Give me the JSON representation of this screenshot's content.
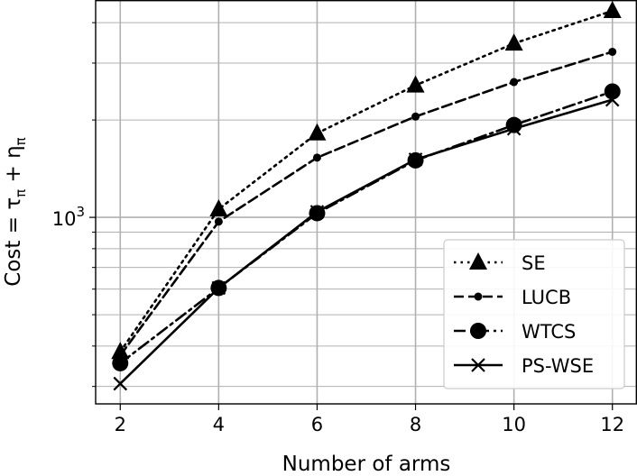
{
  "chart_data": {
    "type": "line",
    "xlabel": "Number of arms",
    "ylabel_main": "Cost = τ",
    "ylabel_sub1": "π",
    "ylabel_mid": " + η",
    "ylabel_sub2": "π",
    "yscale": "log",
    "grid": true,
    "legend_position": "lower-right",
    "x": [
      2,
      4,
      6,
      8,
      10,
      12
    ],
    "x_ticks": [
      "2",
      "4",
      "6",
      "8",
      "10",
      "12"
    ],
    "y_tick_major_base": "10",
    "y_tick_major_exp": "3",
    "ylim": [
      265,
      4700
    ],
    "xlim": [
      1.5,
      12.5
    ],
    "series": [
      {
        "name": "SE",
        "style": "dotted",
        "marker": "triangle",
        "values": [
          384,
          1060,
          1820,
          2560,
          3450,
          4350
        ]
      },
      {
        "name": "LUCB",
        "style": "dashed",
        "marker": "small-circle",
        "values": [
          374,
          970,
          1530,
          2050,
          2620,
          3250
        ]
      },
      {
        "name": "WTCS",
        "style": "dashdot",
        "marker": "circle",
        "values": [
          354,
          605,
          1030,
          1500,
          1930,
          2450
        ]
      },
      {
        "name": "PS-WSE",
        "style": "solid",
        "marker": "x",
        "values": [
          306,
          605,
          1040,
          1510,
          1880,
          2310
        ]
      }
    ],
    "colors": {
      "line": "#000000",
      "grid": "#b0b0b0",
      "frame": "#000000"
    }
  }
}
